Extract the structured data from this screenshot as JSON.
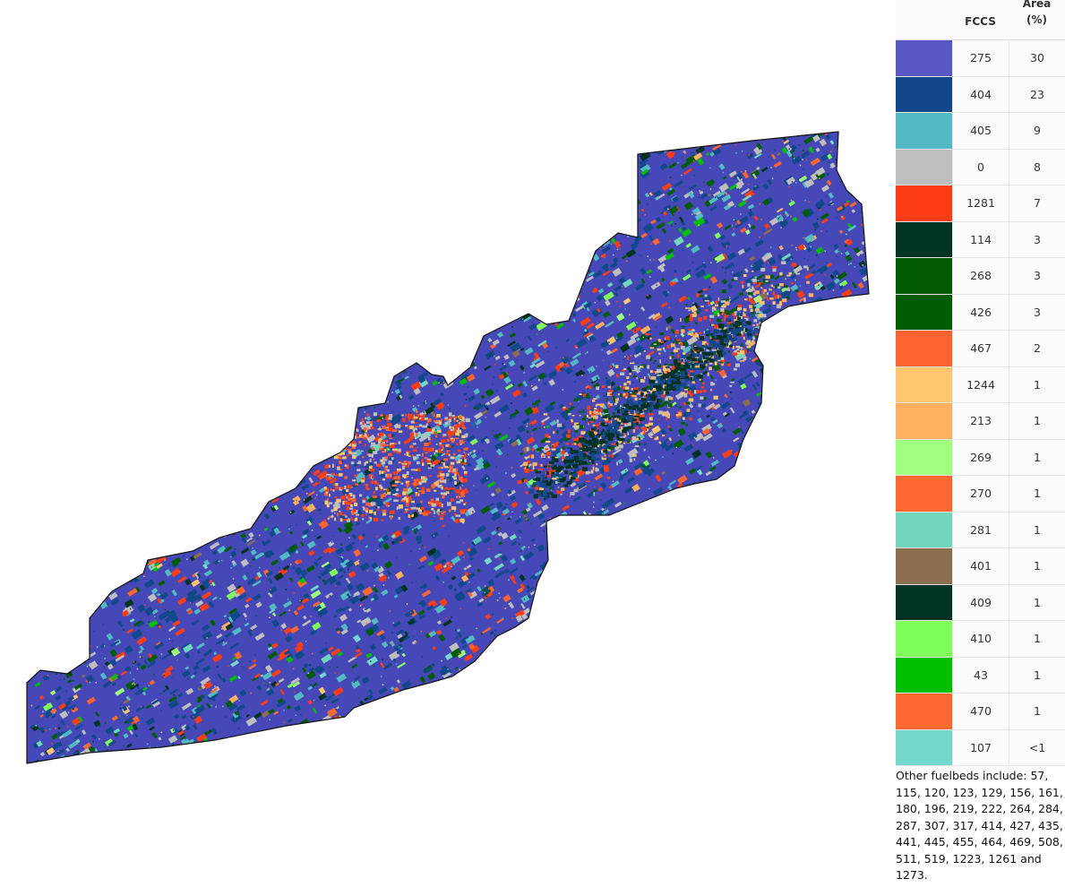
{
  "legend": {
    "header_code": "FCCS",
    "header_area": "Area (%)",
    "rows": [
      {
        "code": "275",
        "area": "30",
        "color": "#5957C4"
      },
      {
        "code": "404",
        "area": "23",
        "color": "#10488A"
      },
      {
        "code": "405",
        "area": "9",
        "color": "#53BAC3"
      },
      {
        "code": "0",
        "area": "8",
        "color": "#BEBEBE"
      },
      {
        "code": "1281",
        "area": "7",
        "color": "#FF3D15"
      },
      {
        "code": "114",
        "area": "3",
        "color": "#003324"
      },
      {
        "code": "268",
        "area": "3",
        "color": "#005A00"
      },
      {
        "code": "426",
        "area": "3",
        "color": "#005C00"
      },
      {
        "code": "467",
        "area": "2",
        "color": "#FF6430"
      },
      {
        "code": "1244",
        "area": "1",
        "color": "#FFC66E"
      },
      {
        "code": "213",
        "area": "1",
        "color": "#FFB05E"
      },
      {
        "code": "269",
        "area": "1",
        "color": "#A0FF7E"
      },
      {
        "code": "270",
        "area": "1",
        "color": "#FF6830"
      },
      {
        "code": "281",
        "area": "1",
        "color": "#72D6BD"
      },
      {
        "code": "401",
        "area": "1",
        "color": "#8B6E4D"
      },
      {
        "code": "409",
        "area": "1",
        "color": "#003324"
      },
      {
        "code": "410",
        "area": "1",
        "color": "#7EFF5C"
      },
      {
        "code": "43",
        "area": "1",
        "color": "#00BE00"
      },
      {
        "code": "470",
        "area": "1",
        "color": "#FF6830"
      },
      {
        "code": "107",
        "area": "<1",
        "color": "#74D8CC"
      }
    ],
    "note": "Other fuelbeds include: 57, 115, 120, 123, 129, 156, 161, 180, 196, 219, 222, 264, 284, 287, 307, 317, 414, 427, 435, 441, 445, 455, 464, 469, 508, 511, 519, 1223, 1261 and 1273."
  },
  "map": {
    "outline_color": "#111111",
    "base_color": "#4648B8"
  }
}
